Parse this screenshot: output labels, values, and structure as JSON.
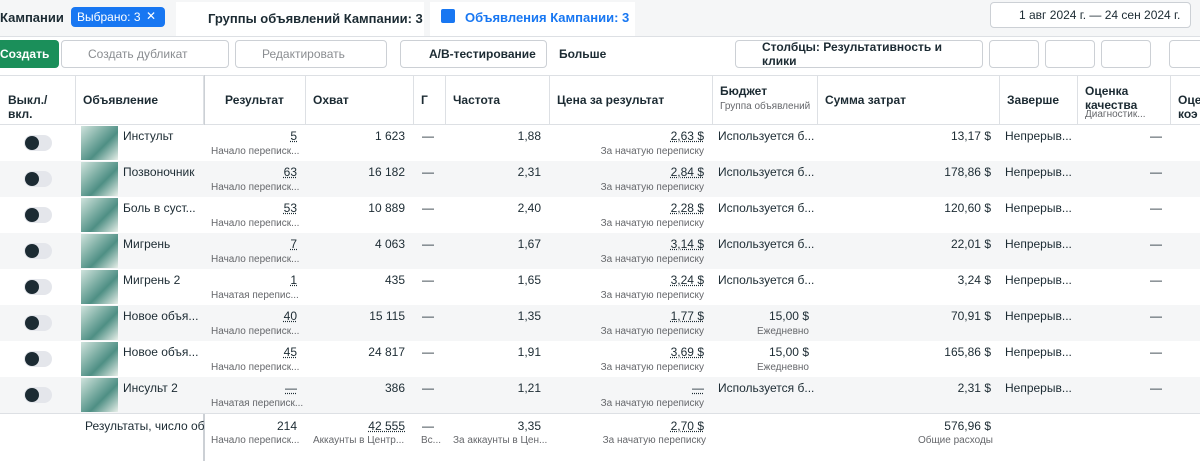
{
  "tabs": {
    "campaigns": "Кампании",
    "selected": "Выбрано: 3",
    "adsets": "Группы объявлений Кампании: 3",
    "ads": "Объявления Кампании: 3"
  },
  "date_range": "1 авг 2024 г. — 24 сен 2024 г.",
  "toolbar": {
    "create": "Создать",
    "duplicate": "Создать дубликат",
    "edit": "Редактировать",
    "ab": "A/B-тестирование",
    "more": "Больше",
    "columns": "Столбцы: Результативность и клики"
  },
  "headers": [
    {
      "label": "Выкл./ вкл."
    },
    {
      "label": "Объявление"
    },
    {
      "label": "Результат"
    },
    {
      "label": "Охват"
    },
    {
      "label": "Г"
    },
    {
      "label": "Частота"
    },
    {
      "label": "Цена за результат"
    },
    {
      "label": "Бюджет",
      "sub": "Группа объявлений"
    },
    {
      "label": "Сумма затрат"
    },
    {
      "label": "Заверше"
    },
    {
      "label": "Оценка качества",
      "sub": "Диагностик..."
    },
    {
      "label": "Оце коэ"
    }
  ],
  "rows": [
    {
      "name": "Инстульт",
      "result": "5",
      "result_sub": "Начало переписк...",
      "reach": "1 623",
      "g": "—",
      "freq": "1,88",
      "cost": "2,63 $",
      "cost_sub": "За начатую переписку",
      "budget": "Используется б...",
      "spend": "13,17 $",
      "status": "Непрерыв...",
      "quality": "—"
    },
    {
      "name": "Позвоночник",
      "result": "63",
      "result_sub": "Начало переписк...",
      "reach": "16 182",
      "g": "—",
      "freq": "2,31",
      "cost": "2,84 $",
      "cost_sub": "За начатую переписку",
      "budget": "Используется б...",
      "spend": "178,86 $",
      "status": "Непрерыв...",
      "quality": "—"
    },
    {
      "name": "Боль в суст...",
      "result": "53",
      "result_sub": "Начало переписк...",
      "reach": "10 889",
      "g": "—",
      "freq": "2,40",
      "cost": "2,28 $",
      "cost_sub": "За начатую переписку",
      "budget": "Используется б...",
      "spend": "120,60 $",
      "status": "Непрерыв...",
      "quality": "—"
    },
    {
      "name": "Мигрень",
      "result": "7",
      "result_sub": "Начало переписк...",
      "reach": "4 063",
      "g": "—",
      "freq": "1,67",
      "cost": "3,14 $",
      "cost_sub": "За начатую переписку",
      "budget": "Используется б...",
      "spend": "22,01 $",
      "status": "Непрерыв...",
      "quality": "—"
    },
    {
      "name": "Мигрень 2",
      "result": "1",
      "result_sub": "Начатая перепис...",
      "reach": "435",
      "g": "—",
      "freq": "1,65",
      "cost": "3,24 $",
      "cost_sub": "За начатую переписку",
      "budget": "Используется б...",
      "spend": "3,24 $",
      "status": "Непрерыв...",
      "quality": "—"
    },
    {
      "name": "Новое объя...",
      "result": "40",
      "result_sub": "Начало переписк...",
      "reach": "15 115",
      "g": "—",
      "freq": "1,35",
      "cost": "1,77 $",
      "cost_sub": "За начатую переписку",
      "budget": "15,00 $",
      "budget_sub": "Ежедневно",
      "spend": "70,91 $",
      "status": "Непрерыв...",
      "quality": "—"
    },
    {
      "name": "Новое объя...",
      "result": "45",
      "result_sub": "Начало переписк...",
      "reach": "24 817",
      "g": "—",
      "freq": "1,91",
      "cost": "3,69 $",
      "cost_sub": "За начатую переписку",
      "budget": "15,00 $",
      "budget_sub": "Ежедневно",
      "spend": "165,86 $",
      "status": "Непрерыв...",
      "quality": "—"
    },
    {
      "name": "Инсульт 2",
      "result": "—",
      "result_sub": "Начатая переписк...",
      "reach": "386",
      "g": "—",
      "freq": "1,21",
      "cost": "—",
      "cost_sub": "За начатую переписку",
      "budget": "Используется б...",
      "spend": "2,31 $",
      "status": "Непрерыв...",
      "quality": "—"
    }
  ],
  "footer": {
    "name": "Результаты, число об",
    "result": "214",
    "result_sub": "Начало переписк...",
    "reach": "42 555",
    "reach_sub": "Аккаунты в Центр...",
    "g": "—",
    "g_sub": "Вс...",
    "freq": "3,35",
    "freq_sub": "За аккаунты в Цен...",
    "cost": "2,70 $",
    "cost_sub": "За начатую переписку",
    "spend": "576,96 $",
    "spend_sub": "Общие расходы"
  }
}
